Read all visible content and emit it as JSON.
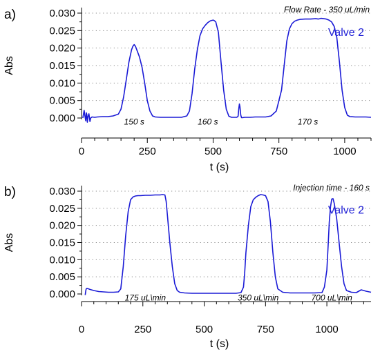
{
  "chart_data": [
    {
      "panel_label": "a)",
      "type": "line",
      "xlabel": "t (s)",
      "ylabel": "Abs",
      "xlim": [
        0,
        1100
      ],
      "ylim": [
        0,
        0.03
      ],
      "xticks": [
        0,
        250,
        500,
        750,
        1000
      ],
      "yticks": [
        0.0,
        0.005,
        0.01,
        0.015,
        0.02,
        0.025,
        0.03
      ],
      "grid": "horizontal dotted",
      "top_annotation": "Flow Rate - 350 uL/min",
      "series_label": "Valve 2",
      "color": "#1a1ad6",
      "annotations": [
        {
          "text": "150 s",
          "x": 200,
          "y": -0.0005
        },
        {
          "text": "160 s",
          "x": 480,
          "y": -0.0005
        },
        {
          "text": "170 s",
          "x": 860,
          "y": -0.0005
        }
      ],
      "series": [
        {
          "x": [
            5,
            10,
            13,
            16,
            18,
            20,
            22,
            25,
            28,
            32,
            35,
            40,
            50,
            60,
            80,
            100,
            120,
            140,
            150,
            160,
            170,
            180,
            190,
            195,
            200,
            205,
            210,
            215,
            220,
            230,
            240,
            250,
            260,
            270,
            280,
            300,
            320,
            340,
            360,
            380,
            400,
            410,
            420,
            430,
            440,
            450,
            460,
            470,
            480,
            490,
            500,
            505,
            510,
            520,
            530,
            540,
            550,
            560,
            570,
            580,
            590,
            595,
            598,
            600,
            602,
            605,
            608,
            612,
            620,
            640,
            660,
            680,
            700,
            720,
            740,
            760,
            770,
            780,
            790,
            800,
            810,
            820,
            830,
            850,
            870,
            890,
            900,
            910,
            920,
            930,
            940,
            950,
            960,
            970,
            980,
            990,
            1000,
            1010,
            1020,
            1040,
            1060,
            1080,
            1100
          ],
          "values": [
            0.0,
            0.0022,
            0.0005,
            -0.0008,
            0.0015,
            0.001,
            -0.0012,
            0.0005,
            0.0012,
            -0.001,
            0.0,
            0.0003,
            0.0002,
            0.0003,
            0.0004,
            0.0004,
            0.0006,
            0.0011,
            0.0025,
            0.006,
            0.011,
            0.016,
            0.0195,
            0.0205,
            0.021,
            0.0205,
            0.0195,
            0.0185,
            0.0175,
            0.0145,
            0.01,
            0.005,
            0.002,
            0.0006,
            0.0003,
            0.0002,
            0.0002,
            0.0002,
            0.0002,
            0.0002,
            0.0006,
            0.002,
            0.007,
            0.014,
            0.0195,
            0.0235,
            0.0255,
            0.0265,
            0.0273,
            0.0278,
            0.028,
            0.0278,
            0.0275,
            0.0245,
            0.016,
            0.008,
            0.0025,
            0.0005,
            0.0002,
            0.0002,
            0.0002,
            0.0005,
            0.003,
            0.004,
            0.0032,
            0.0008,
            0.0001,
            0.0001,
            0.0002,
            0.0002,
            0.0003,
            0.0003,
            0.0003,
            0.0006,
            0.002,
            0.008,
            0.015,
            0.022,
            0.0255,
            0.027,
            0.0277,
            0.028,
            0.0282,
            0.0283,
            0.0283,
            0.0284,
            0.0283,
            0.0285,
            0.0284,
            0.0283,
            0.028,
            0.0275,
            0.0262,
            0.023,
            0.016,
            0.008,
            0.003,
            0.0008,
            0.0004,
            0.0003,
            0.0003,
            0.0003,
            0.0002
          ]
        }
      ]
    },
    {
      "panel_label": "b)",
      "type": "line",
      "xlabel": "t (s)",
      "ylabel": "Abs",
      "xlim": [
        0,
        1180
      ],
      "ylim": [
        0,
        0.03
      ],
      "xticks": [
        0,
        250,
        500,
        750,
        1000
      ],
      "yticks": [
        0.0,
        0.005,
        0.01,
        0.015,
        0.02,
        0.025,
        0.03
      ],
      "grid": "horizontal dotted",
      "top_annotation": "Injection time - 160 s",
      "series_label": "Valve 2",
      "color": "#1a1ad6",
      "annotations": [
        {
          "text": "175 uL\\min",
          "x": 260,
          "y": -0.0005
        },
        {
          "text": "350 uL\\min",
          "x": 720,
          "y": -0.0005
        },
        {
          "text": "700 uL\\min",
          "x": 1020,
          "y": -0.0005
        }
      ],
      "series": [
        {
          "x": [
            15,
            18,
            20,
            25,
            35,
            50,
            70,
            90,
            110,
            130,
            150,
            160,
            170,
            180,
            190,
            200,
            210,
            220,
            230,
            240,
            260,
            280,
            300,
            320,
            330,
            340,
            345,
            350,
            360,
            370,
            380,
            390,
            400,
            420,
            450,
            500,
            550,
            600,
            630,
            650,
            660,
            665,
            670,
            680,
            690,
            700,
            710,
            720,
            730,
            740,
            750,
            760,
            770,
            780,
            790,
            800,
            820,
            850,
            900,
            950,
            980,
            990,
            1000,
            1005,
            1010,
            1015,
            1020,
            1025,
            1030,
            1040,
            1050,
            1060,
            1070,
            1080,
            1100,
            1120,
            1140,
            1160,
            1180
          ],
          "values": [
            -0.0003,
            0.0012,
            0.0016,
            0.0016,
            0.0013,
            0.001,
            0.0007,
            0.0006,
            0.0005,
            0.0005,
            0.0006,
            0.0015,
            0.008,
            0.017,
            0.024,
            0.0275,
            0.0283,
            0.0286,
            0.0287,
            0.0287,
            0.0288,
            0.0288,
            0.0289,
            0.0289,
            0.029,
            0.0289,
            0.027,
            0.023,
            0.015,
            0.008,
            0.003,
            0.001,
            0.0005,
            0.0003,
            0.0002,
            0.0002,
            0.0002,
            0.0002,
            0.0002,
            0.0004,
            0.002,
            0.006,
            0.012,
            0.02,
            0.0255,
            0.0275,
            0.0282,
            0.0287,
            0.029,
            0.0289,
            0.0287,
            0.027,
            0.021,
            0.012,
            0.005,
            0.0015,
            0.0005,
            0.0003,
            0.0003,
            0.0003,
            0.0004,
            0.002,
            0.007,
            0.014,
            0.021,
            0.0255,
            0.0277,
            0.0278,
            0.0265,
            0.022,
            0.015,
            0.008,
            0.003,
            0.001,
            0.0005,
            0.0004,
            0.0012,
            0.0008,
            0.0005
          ]
        }
      ]
    }
  ]
}
